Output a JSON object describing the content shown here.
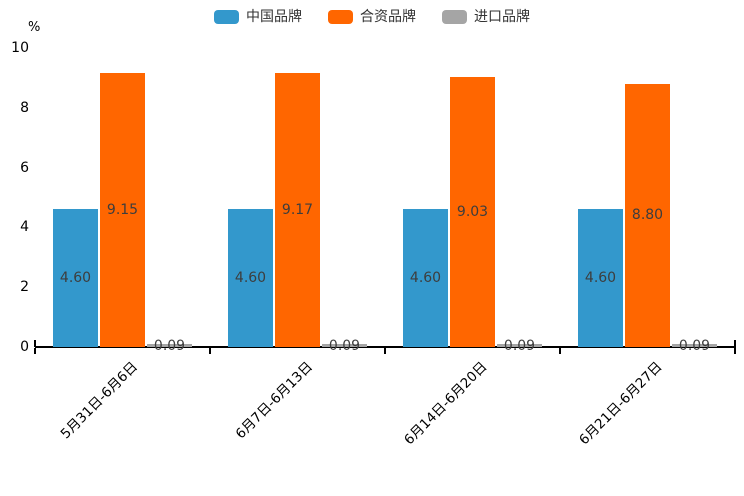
{
  "chart_data": {
    "type": "bar",
    "title": "",
    "ylabel": "%",
    "xlabel": "",
    "ylim": [
      0,
      10
    ],
    "yticks": [
      0,
      2,
      4,
      6,
      8,
      10
    ],
    "grid": false,
    "legend_position": "top",
    "categories": [
      "5月31日-6月6日",
      "6月7日-6月13日",
      "6月14日-6月20日",
      "6月21日-6月27日"
    ],
    "series": [
      {
        "name": "中国品牌",
        "color": "#3398cc",
        "values": [
          4.6,
          4.6,
          4.6,
          4.6
        ],
        "labels": [
          "4.60",
          "4.60",
          "4.60",
          "4.60"
        ]
      },
      {
        "name": "合资品牌",
        "color": "#ff6600",
        "values": [
          9.15,
          9.17,
          9.03,
          8.8
        ],
        "labels": [
          "9.15",
          "9.17",
          "9.03",
          "8.80"
        ]
      },
      {
        "name": "进口品牌",
        "color": "#a5a5a5",
        "values": [
          0.09,
          0.09,
          0.09,
          0.09
        ],
        "labels": [
          "0.09",
          "0.09",
          "0.09",
          "0.09"
        ]
      }
    ],
    "colors": {
      "axis": "#000000",
      "tick_label": "#000000",
      "value_label": "#3d3d3d",
      "background": "#ffffff"
    }
  }
}
